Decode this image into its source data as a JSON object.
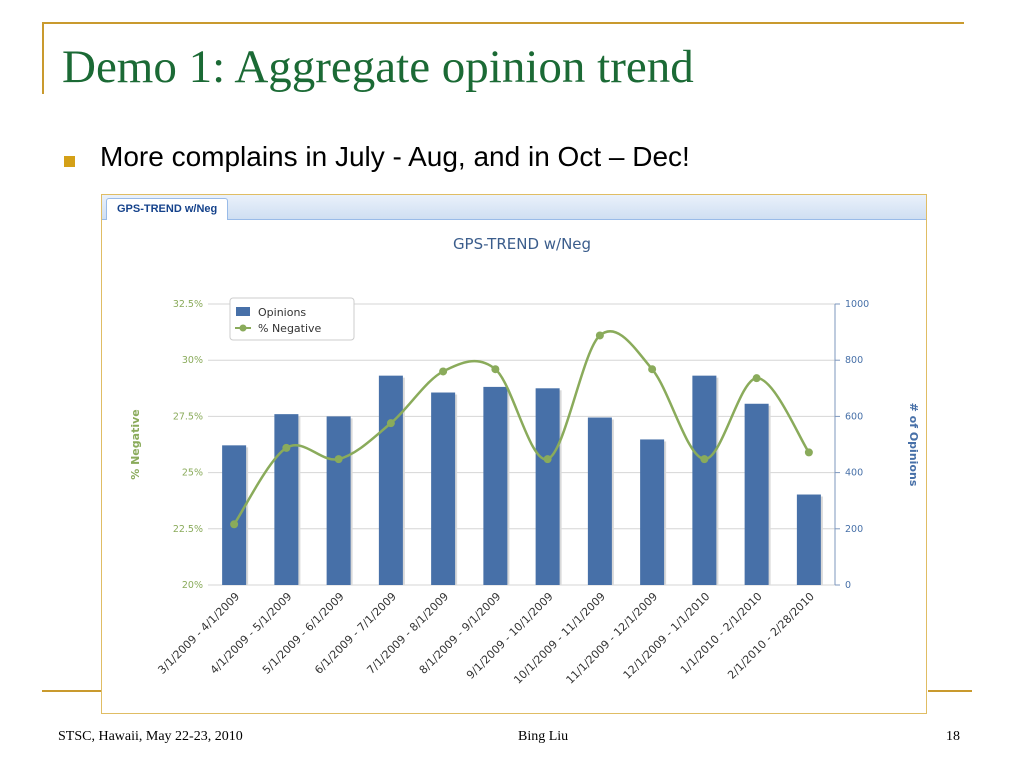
{
  "slide": {
    "title": "Demo 1: Aggregate opinion trend",
    "bullet": "More complains in July - Aug, and in Oct – Dec!",
    "footer_left": "STSC, Hawaii, May 22-23, 2010",
    "footer_center": "Bing Liu",
    "footer_right": "18",
    "accent_color": "#c99a2e",
    "title_color": "#1b6a35",
    "bullet_color": "#d4a017"
  },
  "panel": {
    "tab_label": "GPS-TREND w/Neg"
  },
  "chart_data": {
    "type": "bar",
    "title": "GPS-TREND w/Neg",
    "categories": [
      "3/1/2009 - 4/1/2009",
      "4/1/2009 - 5/1/2009",
      "5/1/2009 - 6/1/2009",
      "6/1/2009 - 7/1/2009",
      "7/1/2009 - 8/1/2009",
      "8/1/2009 - 9/1/2009",
      "9/1/2009 - 10/1/2009",
      "10/1/2009 - 11/1/2009",
      "11/1/2009 - 12/1/2009",
      "12/1/2009 - 1/1/2010",
      "1/1/2010 - 2/1/2010",
      "2/1/2010 - 2/28/2010"
    ],
    "series": [
      {
        "name": "Opinions",
        "type": "bar",
        "axis": "right",
        "color": "#4770a8",
        "values": [
          497,
          608,
          600,
          745,
          685,
          705,
          700,
          596,
          518,
          745,
          645,
          322
        ]
      },
      {
        "name": "% Negative",
        "type": "line",
        "axis": "left",
        "color": "#8aab5b",
        "values": [
          22.7,
          26.1,
          25.6,
          27.2,
          29.5,
          29.6,
          25.6,
          31.1,
          29.6,
          25.6,
          29.2,
          25.9
        ]
      }
    ],
    "y_left": {
      "label": "% Negative",
      "ticks": [
        "20%",
        "22.5%",
        "25%",
        "27.5%",
        "30%",
        "32.5%"
      ],
      "min": 20,
      "max": 32.5
    },
    "y_right": {
      "label": "# of Opinions",
      "ticks": [
        "0",
        "200",
        "400",
        "600",
        "800",
        "1000"
      ],
      "min": 0,
      "max": 1000
    },
    "grid": true,
    "legend_position": "top-left"
  }
}
